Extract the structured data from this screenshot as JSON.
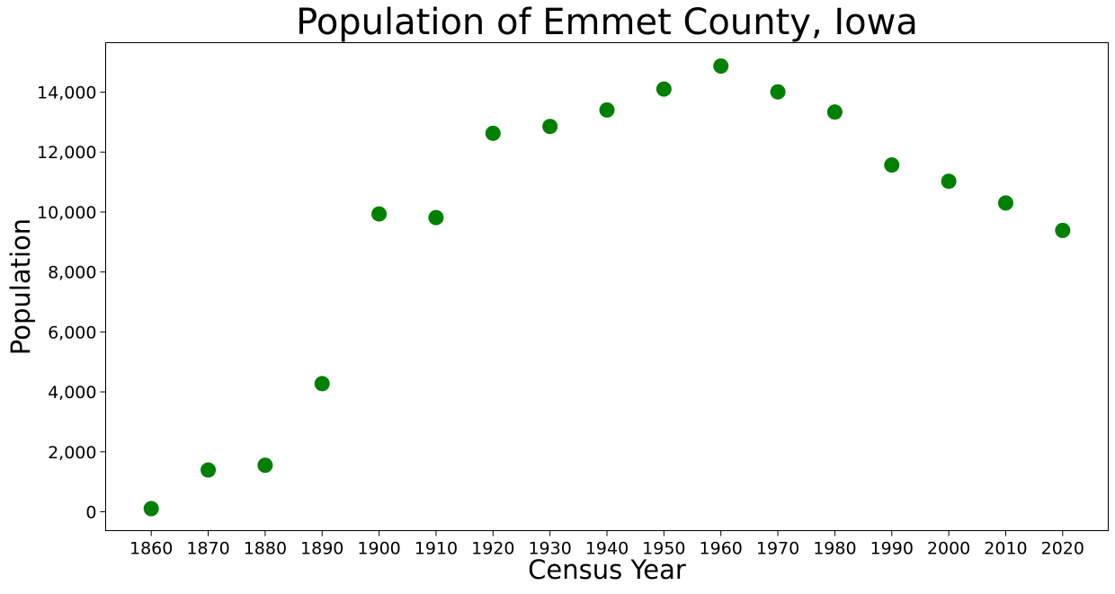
{
  "chart_data": {
    "type": "scatter",
    "title": "Population of Emmet County, Iowa",
    "xlabel": "Census Year",
    "ylabel": "Population",
    "x": [
      1860,
      1870,
      1880,
      1890,
      1900,
      1910,
      1920,
      1930,
      1940,
      1950,
      1960,
      1970,
      1980,
      1990,
      2000,
      2010,
      2020
    ],
    "y": [
      105,
      1392,
      1550,
      4274,
      9936,
      9816,
      12627,
      12856,
      13406,
      14102,
      14871,
      14009,
      13336,
      11569,
      11027,
      10302,
      9388
    ],
    "xlim": [
      1852,
      2028
    ],
    "ylim": [
      -630,
      15650
    ],
    "xticks": [
      1860,
      1870,
      1880,
      1890,
      1900,
      1910,
      1920,
      1930,
      1940,
      1950,
      1960,
      1970,
      1980,
      1990,
      2000,
      2010,
      2020
    ],
    "yticks": [
      0,
      2000,
      4000,
      6000,
      8000,
      10000,
      12000,
      14000
    ],
    "ytick_labels": [
      "0",
      "2,000",
      "4,000",
      "6,000",
      "8,000",
      "10,000",
      "12,000",
      "14,000"
    ],
    "marker_color": "#008000",
    "grid": false
  }
}
